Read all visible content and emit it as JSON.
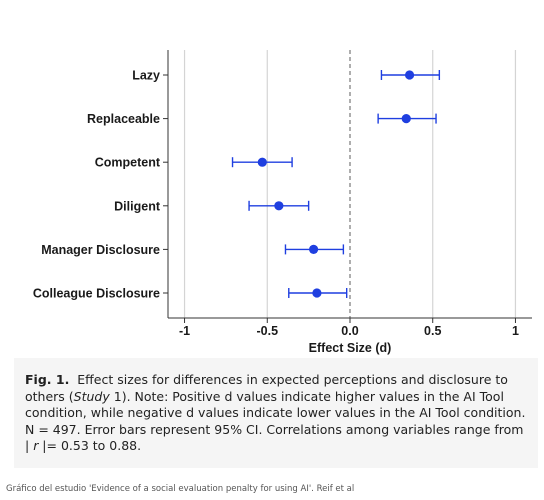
{
  "chart_data": {
    "type": "forest",
    "xlabel": "Effect Size (d)",
    "xlim": [
      -1.1,
      1.1
    ],
    "xticks": [
      -1,
      -0.5,
      0.0,
      0.5,
      1
    ],
    "xtick_labels": [
      "-1",
      "-0.5",
      "0.0",
      "0.5",
      "1"
    ],
    "reference_line": 0,
    "grid": "vertical",
    "point_color": "#1f3fe0",
    "categories": [
      "Lazy",
      "Replaceable",
      "Competent",
      "Diligent",
      "Manager Disclosure",
      "Colleague Disclosure"
    ],
    "values": [
      0.36,
      0.34,
      -0.53,
      -0.43,
      -0.22,
      -0.2
    ],
    "ci_low": [
      0.19,
      0.17,
      -0.71,
      -0.61,
      -0.39,
      -0.37
    ],
    "ci_high": [
      0.54,
      0.52,
      -0.35,
      -0.25,
      -0.04,
      -0.02
    ]
  },
  "caption": {
    "fig_label": "Fig. 1.",
    "text_before_study": "Effect sizes for differences in expected perceptions and disclosure to others (",
    "study": "Study",
    "text_after_study": " 1). Note: Positive d values indicate higher values in the AI Tool condition, while negative d values indicate lower values in the AI Tool condition. N = 497. Error bars represent 95% CI. Correlations among variables range from | ",
    "r_var": "r",
    "text_end": " |= 0.53 to 0.88."
  },
  "credit": "Gráfico del estudio 'Evidence of a social evaluation penalty for using AI'. Reif et al"
}
